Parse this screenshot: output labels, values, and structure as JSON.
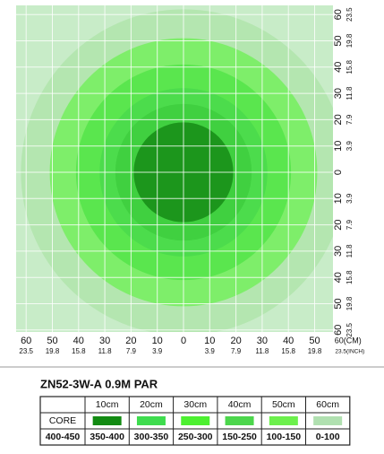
{
  "diagram": {
    "circles": [
      {
        "radius_cm": 62,
        "color": "#b4e6b0"
      },
      {
        "radius_cm": 51,
        "color": "#7eee6a"
      },
      {
        "radius_cm": 41,
        "color": "#5ae64e"
      },
      {
        "radius_cm": 32,
        "color": "#4cdc4c"
      },
      {
        "radius_cm": 26,
        "color": "#40d040"
      },
      {
        "radius_cm": 19,
        "color": "#1c961c"
      }
    ],
    "bottom_cm": [
      "60",
      "50",
      "40",
      "30",
      "20",
      "10",
      "0",
      "10",
      "20",
      "30",
      "40",
      "50",
      "60(CM)"
    ],
    "bottom_inch": [
      "23.5",
      "19.8",
      "15.8",
      "11.8",
      "7.9",
      "3.9",
      null,
      "3.9",
      "7.9",
      "11.8",
      "15.8",
      "19.8",
      "23.5(INCH)"
    ],
    "right_cm": [
      "60",
      "50",
      "40",
      "30",
      "20",
      "10",
      "0",
      "10",
      "20",
      "30",
      "40",
      "50",
      "60"
    ],
    "right_inch": [
      "23.5",
      "19.8",
      "15.8",
      "11.8",
      "7.9",
      "3.9",
      null,
      "3.9",
      "7.9",
      "11.8",
      "15.8",
      "19.8",
      "23.5"
    ]
  },
  "title": "ZN52-3W-A  0.9M PAR",
  "table": {
    "columns": [
      "10cm",
      "20cm",
      "30cm",
      "40cm",
      "50cm",
      "60cm"
    ],
    "core_label": "CORE",
    "swatches": [
      "#128a12",
      "#3edc4e",
      "#4cf030",
      "#4cd64c",
      "#6cf04c",
      "#b0e0b0"
    ],
    "first_range": "400-450",
    "ranges": [
      "350-400",
      "300-350",
      "250-300",
      "150-250",
      "100-150",
      "0-100"
    ]
  }
}
